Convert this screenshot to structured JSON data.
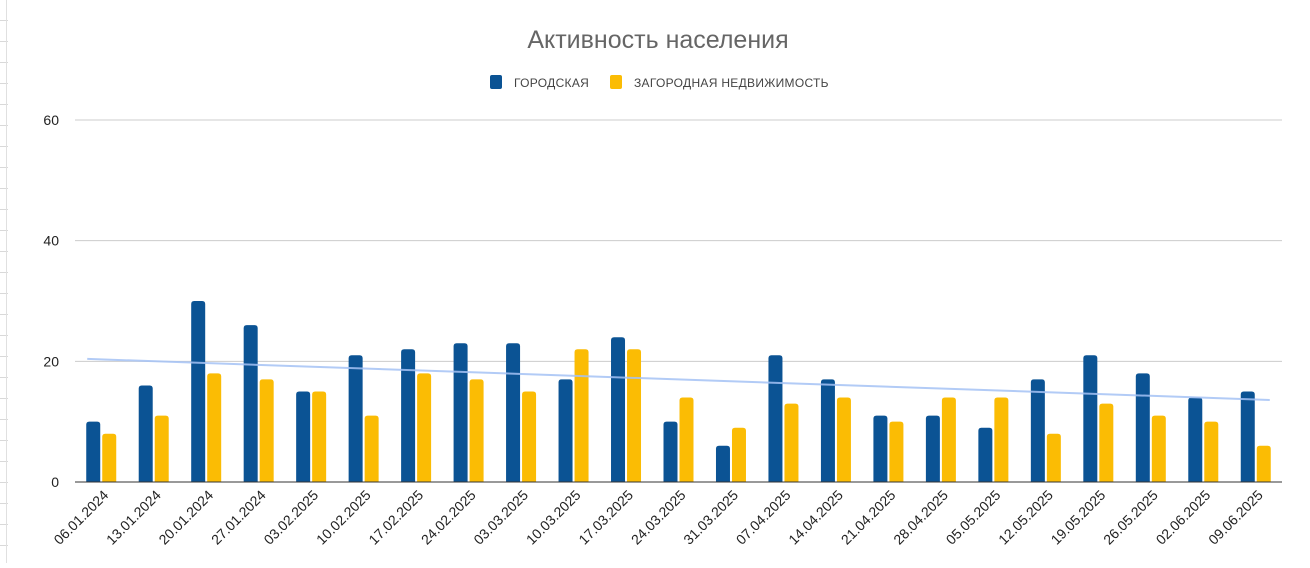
{
  "chart_data": {
    "type": "bar",
    "title": "Активность населения",
    "categories": [
      "06.01.2024",
      "13.01.2024",
      "20.01.2024",
      "27.01.2024",
      "03.02.2025",
      "10.02.2025",
      "17.02.2025",
      "24.02.2025",
      "03.03.2025",
      "10.03.2025",
      "17.03.2025",
      "24.03.2025",
      "31.03.2025",
      "07.04.2025",
      "14.04.2025",
      "21.04.2025",
      "28.04.2025",
      "05.05.2025",
      "12.05.2025",
      "19.05.2025",
      "26.05.2025",
      "02.06.2025",
      "09.06.2025"
    ],
    "series": [
      {
        "name": "ГОРОДСКАЯ",
        "color": "#0b5394",
        "values": [
          10,
          16,
          30,
          26,
          15,
          21,
          22,
          23,
          23,
          17,
          24,
          10,
          6,
          21,
          17,
          11,
          11,
          9,
          17,
          21,
          18,
          14,
          15
        ]
      },
      {
        "name": "ЗАГОРОДНАЯ НЕДВИЖИМОСТЬ",
        "color": "#fbbc04",
        "values": [
          8,
          11,
          18,
          17,
          15,
          11,
          18,
          17,
          15,
          22,
          22,
          14,
          9,
          13,
          14,
          10,
          14,
          14,
          8,
          13,
          11,
          10,
          6
        ]
      }
    ],
    "trendline": {
      "color": "#a4c2f4",
      "start": 20.4,
      "end": 13.6
    },
    "ylim": [
      0,
      60
    ],
    "yticks": [
      0,
      20,
      40,
      60
    ],
    "xlabel": "",
    "ylabel": "",
    "grid": true,
    "legend_position": "top"
  }
}
